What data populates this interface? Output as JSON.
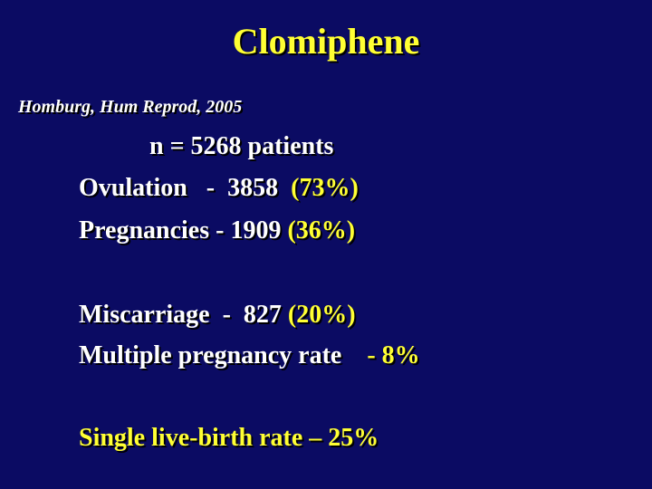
{
  "title": "Clomiphene",
  "citation": "Homburg, Hum Reprod, 2005",
  "lines": {
    "n_patients": "n = 5268 patients",
    "ovulation_label": "Ovulation   -  3858  ",
    "ovulation_pct": "(73%)",
    "pregnancies_label": "Pregnancies - 1909 ",
    "pregnancies_pct": "(36%)",
    "miscarriage_label": "Miscarriage  -  827 ",
    "miscarriage_pct": "(20%)",
    "multiple_label": "Multiple pregnancy rate    ",
    "multiple_pct": "- 8%",
    "single_live_birth": "Single live-birth rate – 25%"
  },
  "colors": {
    "background": "#0b0b63",
    "title": "#ffff33",
    "text": "#ffffff",
    "highlight": "#ffff33"
  }
}
